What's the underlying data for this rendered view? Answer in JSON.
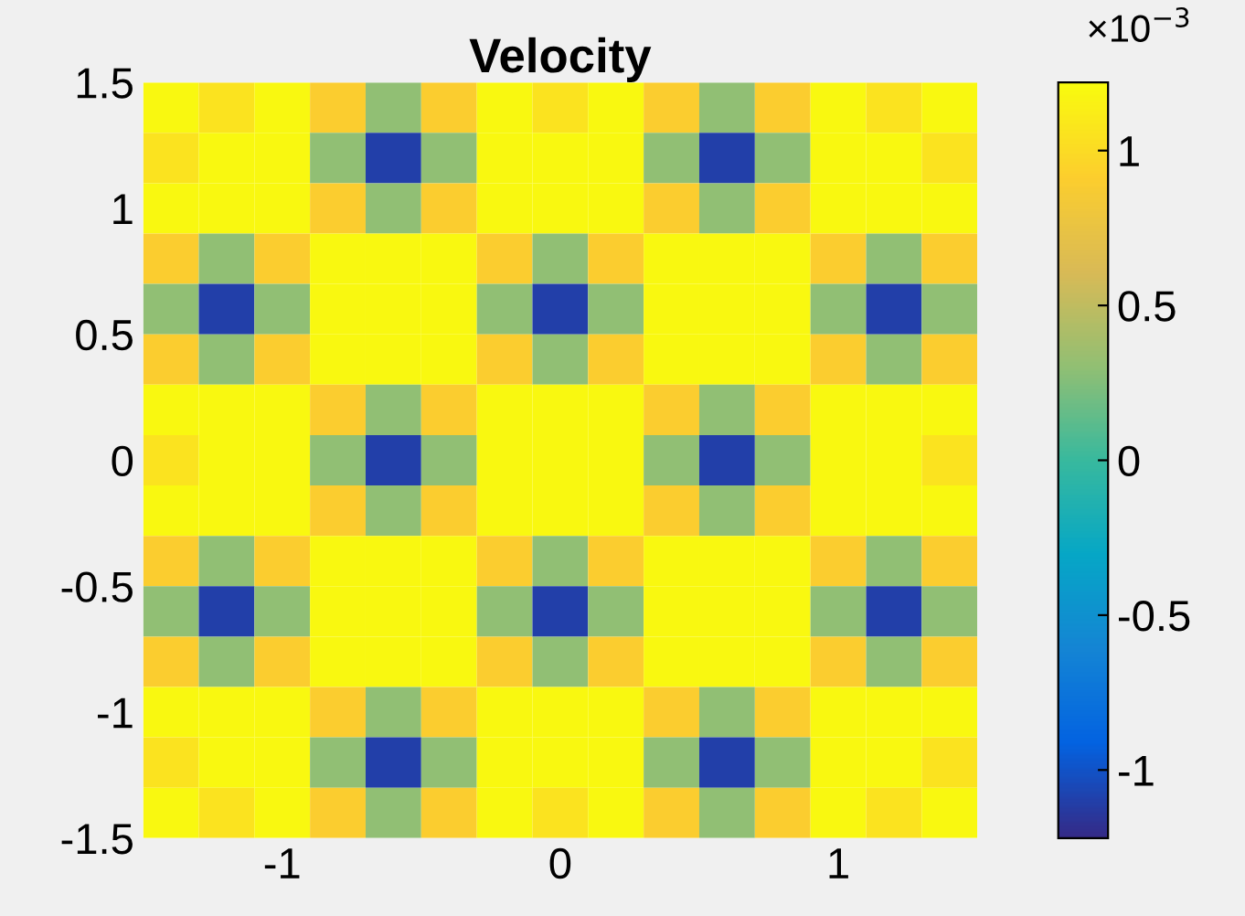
{
  "chart_data": {
    "type": "heatmap",
    "title": "Velocity",
    "x": [
      -1.4,
      -1.2,
      -1.0,
      -0.8,
      -0.6,
      -0.4,
      -0.2,
      0,
      0.2,
      0.4,
      0.6,
      0.8,
      1.0,
      1.2,
      1.4
    ],
    "y": [
      1.4,
      1.2,
      1.0,
      0.8,
      0.6,
      0.4,
      0.2,
      0,
      -0.2,
      -0.4,
      -0.6,
      -0.8,
      -1.0,
      -1.2,
      -1.4
    ],
    "xlim": [
      -1.5,
      1.5
    ],
    "ylim": [
      -1.5,
      1.5
    ],
    "xticks": [
      -1,
      0,
      1
    ],
    "yticks": [
      -1.5,
      -1,
      -0.5,
      0,
      0.5,
      1,
      1.5
    ],
    "clim": [
      -1.22,
      1.22
    ],
    "cticks": [
      -1,
      -0.5,
      0,
      0.5,
      1
    ],
    "colors": [
      "#352a87",
      "#0363e1",
      "#1485d4",
      "#06a7c6",
      "#38b99e",
      "#92bf73",
      "#d9ba56",
      "#fcce2e",
      "#f9fb0e"
    ],
    "annotations": [
      "×10$^{−3}$"
    ],
    "cells": [
      [
        1.2,
        1.05,
        1.2,
        0.9,
        0.3,
        0.9,
        1.2,
        1.05,
        1.2,
        0.9,
        0.3,
        0.9,
        1.2,
        1.05,
        1.2
      ],
      [
        1.05,
        1.2,
        1.2,
        0.3,
        -1.1,
        0.3,
        1.2,
        1.2,
        1.2,
        0.3,
        -1.1,
        0.3,
        1.2,
        1.2,
        1.05
      ],
      [
        1.2,
        1.2,
        1.2,
        0.9,
        0.3,
        0.9,
        1.2,
        1.2,
        1.2,
        0.9,
        0.3,
        0.9,
        1.2,
        1.2,
        1.2
      ],
      [
        0.9,
        0.3,
        0.9,
        1.2,
        1.2,
        1.2,
        0.9,
        0.3,
        0.9,
        1.2,
        1.2,
        1.2,
        0.9,
        0.3,
        0.9
      ],
      [
        0.3,
        -1.1,
        0.3,
        1.2,
        1.2,
        1.2,
        0.3,
        -1.1,
        0.3,
        1.2,
        1.2,
        1.2,
        0.3,
        -1.1,
        0.3
      ],
      [
        0.9,
        0.3,
        0.9,
        1.2,
        1.2,
        1.2,
        0.9,
        0.3,
        0.9,
        1.2,
        1.2,
        1.2,
        0.9,
        0.3,
        0.9
      ],
      [
        1.2,
        1.2,
        1.2,
        0.9,
        0.3,
        0.9,
        1.2,
        1.2,
        1.2,
        0.9,
        0.3,
        0.9,
        1.2,
        1.2,
        1.2
      ],
      [
        1.05,
        1.2,
        1.2,
        0.3,
        -1.1,
        0.3,
        1.2,
        1.2,
        1.2,
        0.3,
        -1.1,
        0.3,
        1.2,
        1.2,
        1.05
      ],
      [
        1.2,
        1.2,
        1.2,
        0.9,
        0.3,
        0.9,
        1.2,
        1.2,
        1.2,
        0.9,
        0.3,
        0.9,
        1.2,
        1.2,
        1.2
      ],
      [
        0.9,
        0.3,
        0.9,
        1.2,
        1.2,
        1.2,
        0.9,
        0.3,
        0.9,
        1.2,
        1.2,
        1.2,
        0.9,
        0.3,
        0.9
      ],
      [
        0.3,
        -1.1,
        0.3,
        1.2,
        1.2,
        1.2,
        0.3,
        -1.1,
        0.3,
        1.2,
        1.2,
        1.2,
        0.3,
        -1.1,
        0.3
      ],
      [
        0.9,
        0.3,
        0.9,
        1.2,
        1.2,
        1.2,
        0.9,
        0.3,
        0.9,
        1.2,
        1.2,
        1.2,
        0.9,
        0.3,
        0.9
      ],
      [
        1.2,
        1.2,
        1.2,
        0.9,
        0.3,
        0.9,
        1.2,
        1.2,
        1.2,
        0.9,
        0.3,
        0.9,
        1.2,
        1.2,
        1.2
      ],
      [
        1.05,
        1.2,
        1.2,
        0.3,
        -1.1,
        0.3,
        1.2,
        1.2,
        1.2,
        0.3,
        -1.1,
        0.3,
        1.2,
        1.2,
        1.05
      ],
      [
        1.2,
        1.05,
        1.2,
        0.9,
        0.3,
        0.9,
        1.2,
        1.05,
        1.2,
        0.9,
        0.3,
        0.9,
        1.2,
        1.05,
        1.2
      ]
    ]
  }
}
